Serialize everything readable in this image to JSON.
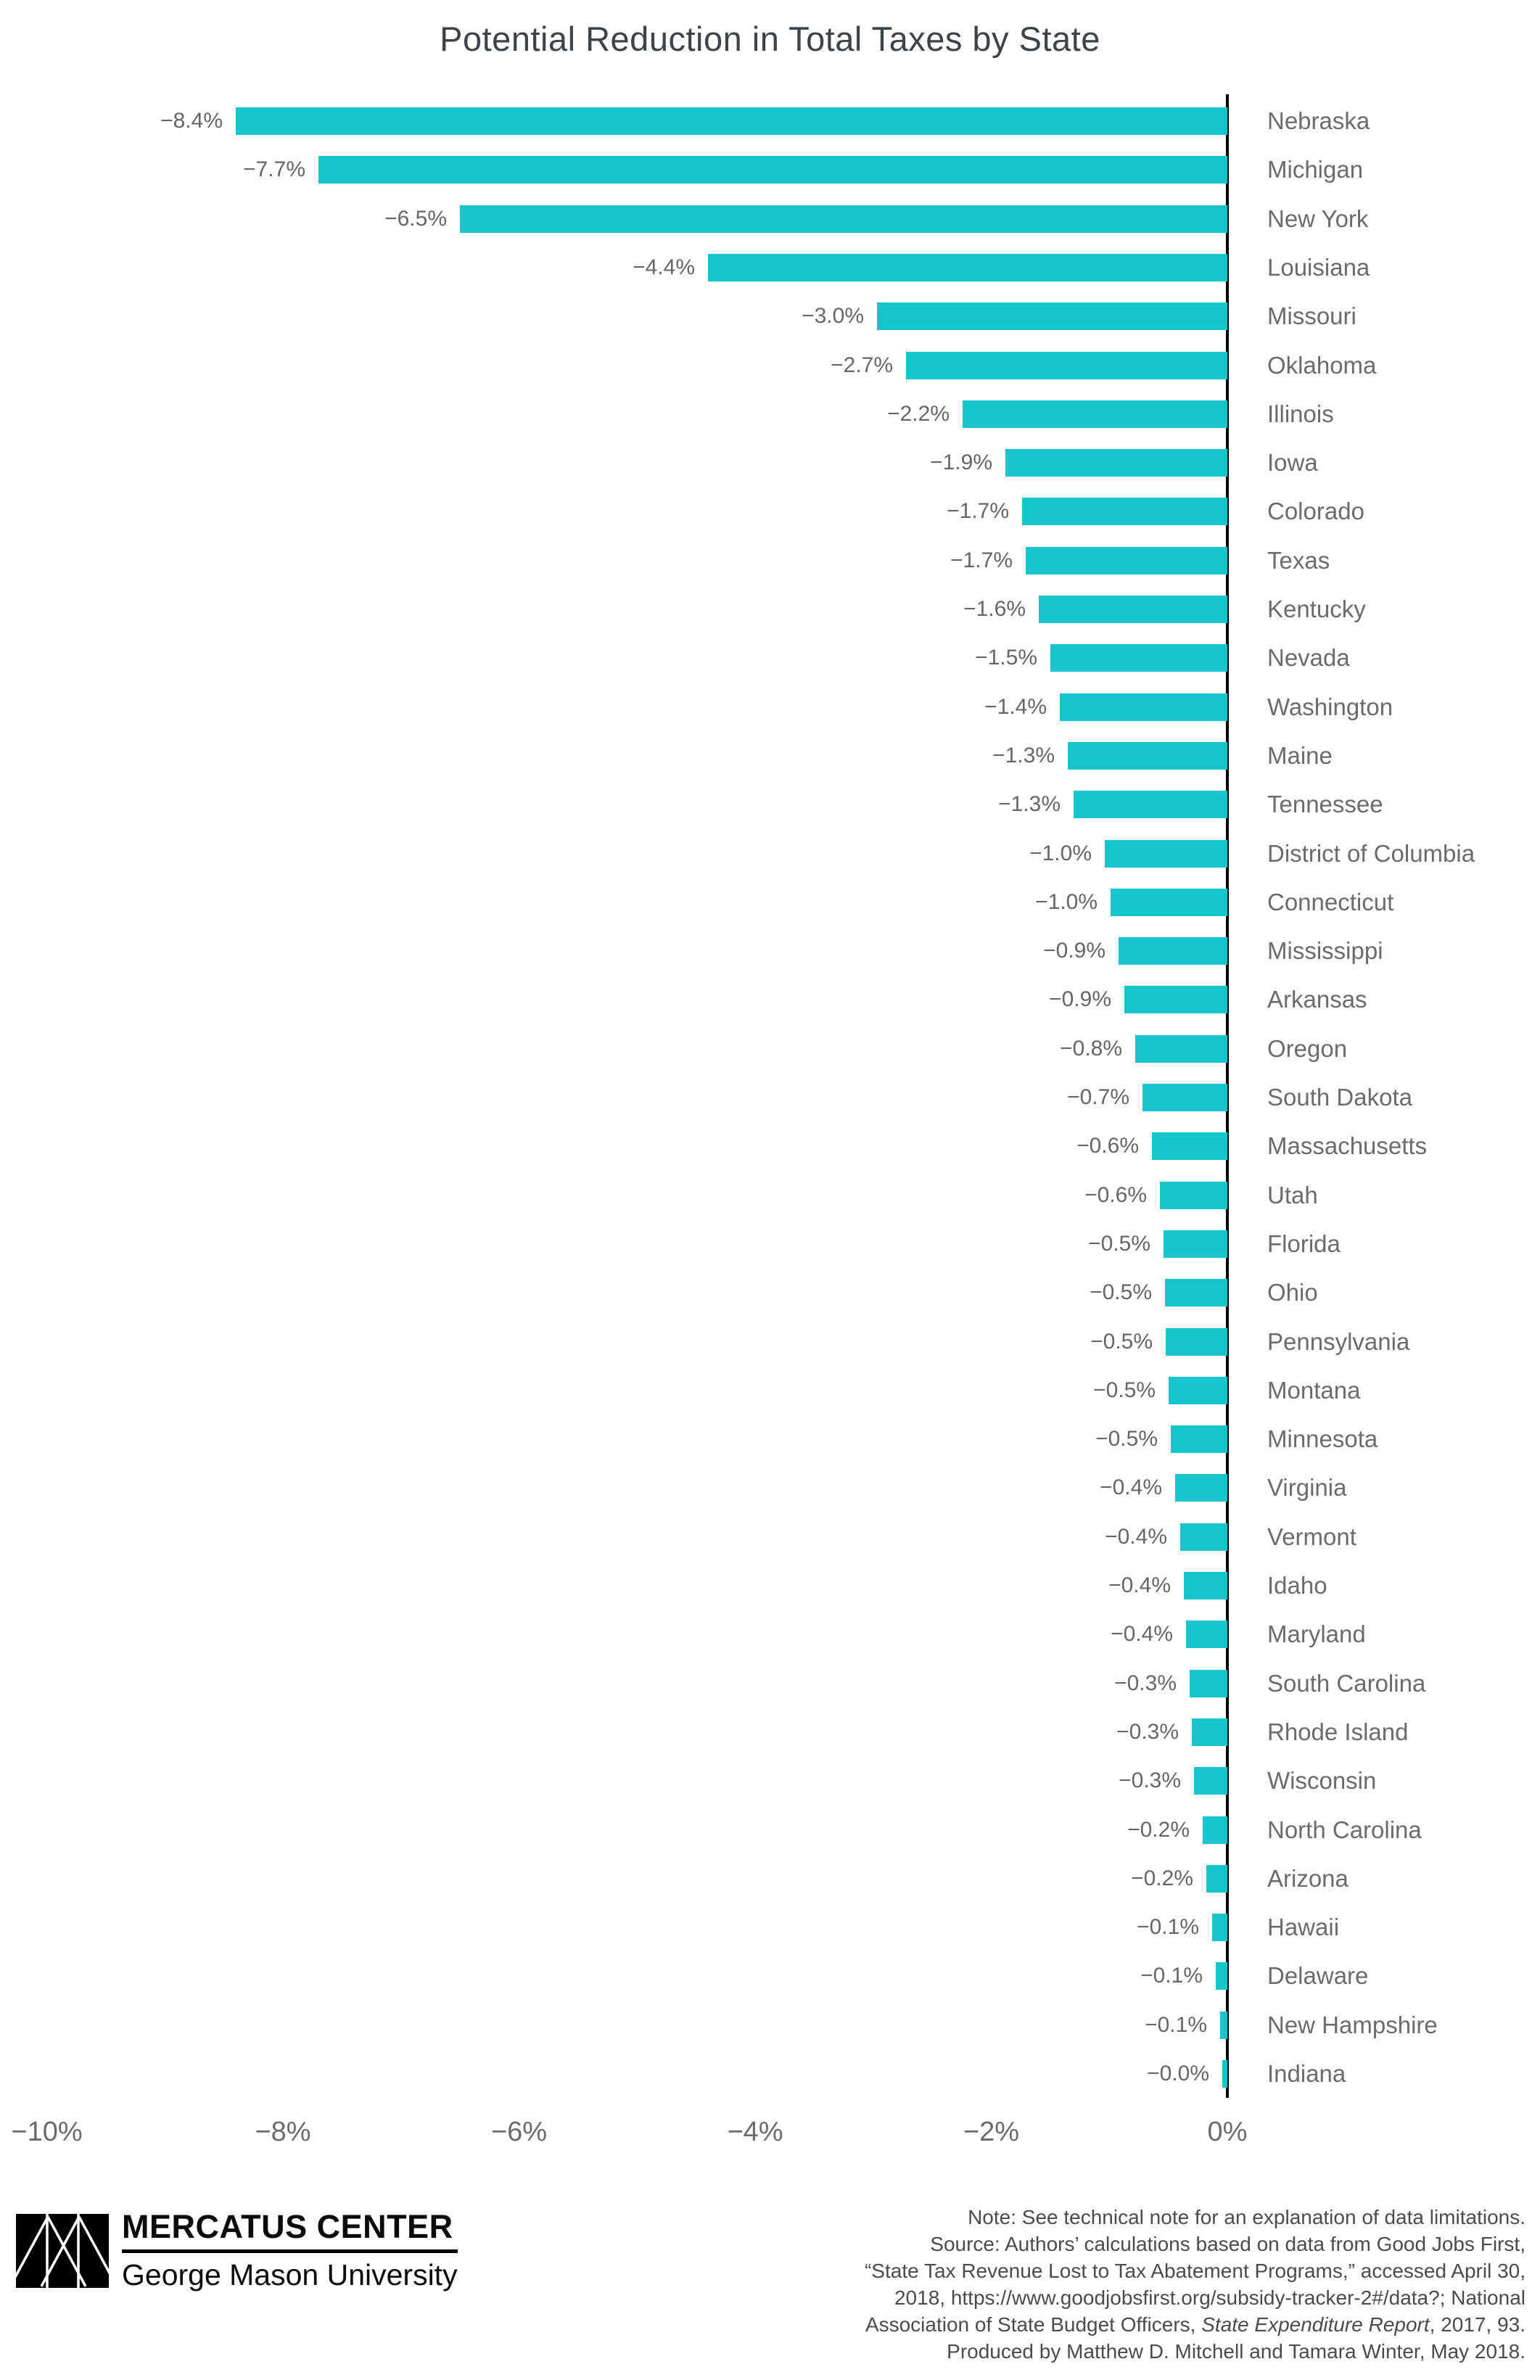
{
  "title": "Potential Reduction in Total Taxes by State",
  "colors": {
    "bar": "#18c4ce",
    "axis": "#000000",
    "title_text": "#3e4347",
    "value_label_text": "#666666",
    "state_label_text": "#6b6b6b",
    "tick_label_text": "#6b6b6b",
    "note_text": "#4b4b4b",
    "logo": "#000000",
    "background": "#ffffff"
  },
  "chart_data": {
    "type": "bar",
    "orientation": "horizontal",
    "title": "Potential Reduction in Total Taxes by State",
    "xlabel": "",
    "ylabel": "",
    "unit": "%",
    "xlim": [
      -10,
      0
    ],
    "grid": false,
    "x_axis": {
      "tick_labels": [
        "−10%",
        "−8%",
        "−6%",
        "−4%",
        "−2%",
        "0%"
      ],
      "tick_values": [
        -10,
        -8,
        -6,
        -4,
        -2,
        0
      ]
    },
    "series": [
      {
        "state": "Nebraska",
        "label": "−8.4%",
        "value": -8.4
      },
      {
        "state": "Michigan",
        "label": "−7.7%",
        "value": -7.7
      },
      {
        "state": "New York",
        "label": "−6.5%",
        "value": -6.5
      },
      {
        "state": "Louisiana",
        "label": "−4.4%",
        "value": -4.4
      },
      {
        "state": "Missouri",
        "label": "−3.0%",
        "value": -2.97
      },
      {
        "state": "Oklahoma",
        "label": "−2.7%",
        "value": -2.72
      },
      {
        "state": "Illinois",
        "label": "−2.2%",
        "value": -2.24
      },
      {
        "state": "Iowa",
        "label": "−1.9%",
        "value": -1.88
      },
      {
        "state": "Colorado",
        "label": "−1.7%",
        "value": -1.74
      },
      {
        "state": "Texas",
        "label": "−1.7%",
        "value": -1.71
      },
      {
        "state": "Kentucky",
        "label": "−1.6%",
        "value": -1.6
      },
      {
        "state": "Nevada",
        "label": "−1.5%",
        "value": -1.5
      },
      {
        "state": "Washington",
        "label": "−1.4%",
        "value": -1.42
      },
      {
        "state": "Maine",
        "label": "−1.3%",
        "value": -1.35
      },
      {
        "state": "Tennessee",
        "label": "−1.3%",
        "value": -1.3
      },
      {
        "state": "District of Columbia",
        "label": "−1.0%",
        "value": -1.04
      },
      {
        "state": "Connecticut",
        "label": "−1.0%",
        "value": -0.99
      },
      {
        "state": "Mississippi",
        "label": "−0.9%",
        "value": -0.92
      },
      {
        "state": "Arkansas",
        "label": "−0.9%",
        "value": -0.87
      },
      {
        "state": "Oregon",
        "label": "−0.8%",
        "value": -0.78
      },
      {
        "state": "South Dakota",
        "label": "−0.7%",
        "value": -0.72
      },
      {
        "state": "Massachusetts",
        "label": "−0.6%",
        "value": -0.64
      },
      {
        "state": "Utah",
        "label": "−0.6%",
        "value": -0.57
      },
      {
        "state": "Florida",
        "label": "−0.5%",
        "value": -0.54
      },
      {
        "state": "Ohio",
        "label": "−0.5%",
        "value": -0.53
      },
      {
        "state": "Pennsylvania",
        "label": "−0.5%",
        "value": -0.52
      },
      {
        "state": "Montana",
        "label": "−0.5%",
        "value": -0.5
      },
      {
        "state": "Minnesota",
        "label": "−0.5%",
        "value": -0.48
      },
      {
        "state": "Virginia",
        "label": "−0.4%",
        "value": -0.44
      },
      {
        "state": "Vermont",
        "label": "−0.4%",
        "value": -0.4
      },
      {
        "state": "Idaho",
        "label": "−0.4%",
        "value": -0.37
      },
      {
        "state": "Maryland",
        "label": "−0.4%",
        "value": -0.35
      },
      {
        "state": "South Carolina",
        "label": "−0.3%",
        "value": -0.32
      },
      {
        "state": "Rhode Island",
        "label": "−0.3%",
        "value": -0.3
      },
      {
        "state": "Wisconsin",
        "label": "−0.3%",
        "value": -0.28
      },
      {
        "state": "North Carolina",
        "label": "−0.2%",
        "value": -0.21
      },
      {
        "state": "Arizona",
        "label": "−0.2%",
        "value": -0.18
      },
      {
        "state": "Hawaii",
        "label": "−0.1%",
        "value": -0.13
      },
      {
        "state": "Delaware",
        "label": "−0.1%",
        "value": -0.1
      },
      {
        "state": "New Hampshire",
        "label": "−0.1%",
        "value": -0.06
      },
      {
        "state": "Indiana",
        "label": "−0.0%",
        "value": -0.04
      }
    ],
    "legend": null,
    "layout_hints": {
      "value_labels_left_of_bars": true,
      "category_labels_right_of_axis": true,
      "zero_axis_line": true
    }
  },
  "footer": {
    "logo": {
      "org": "MERCATUS CENTER",
      "sub": "George Mason University"
    },
    "note": {
      "lines": [
        "Note: See technical note for an explanation of data limitations.",
        "Source: Authors’ calculations based on data from Good Jobs First,",
        "“State Tax Revenue Lost to Tax Abatement Programs,” accessed April 30,",
        "2018, https://www.goodjobsfirst.org/subsidy-tracker-2#/data?; National"
      ],
      "line5": {
        "prefix": "Association of State Budget Officers, ",
        "italic": "State Expenditure Report",
        "suffix": ", 2017, 93."
      },
      "line6": "Produced by Matthew D. Mitchell and Tamara Winter, May 2018."
    }
  }
}
